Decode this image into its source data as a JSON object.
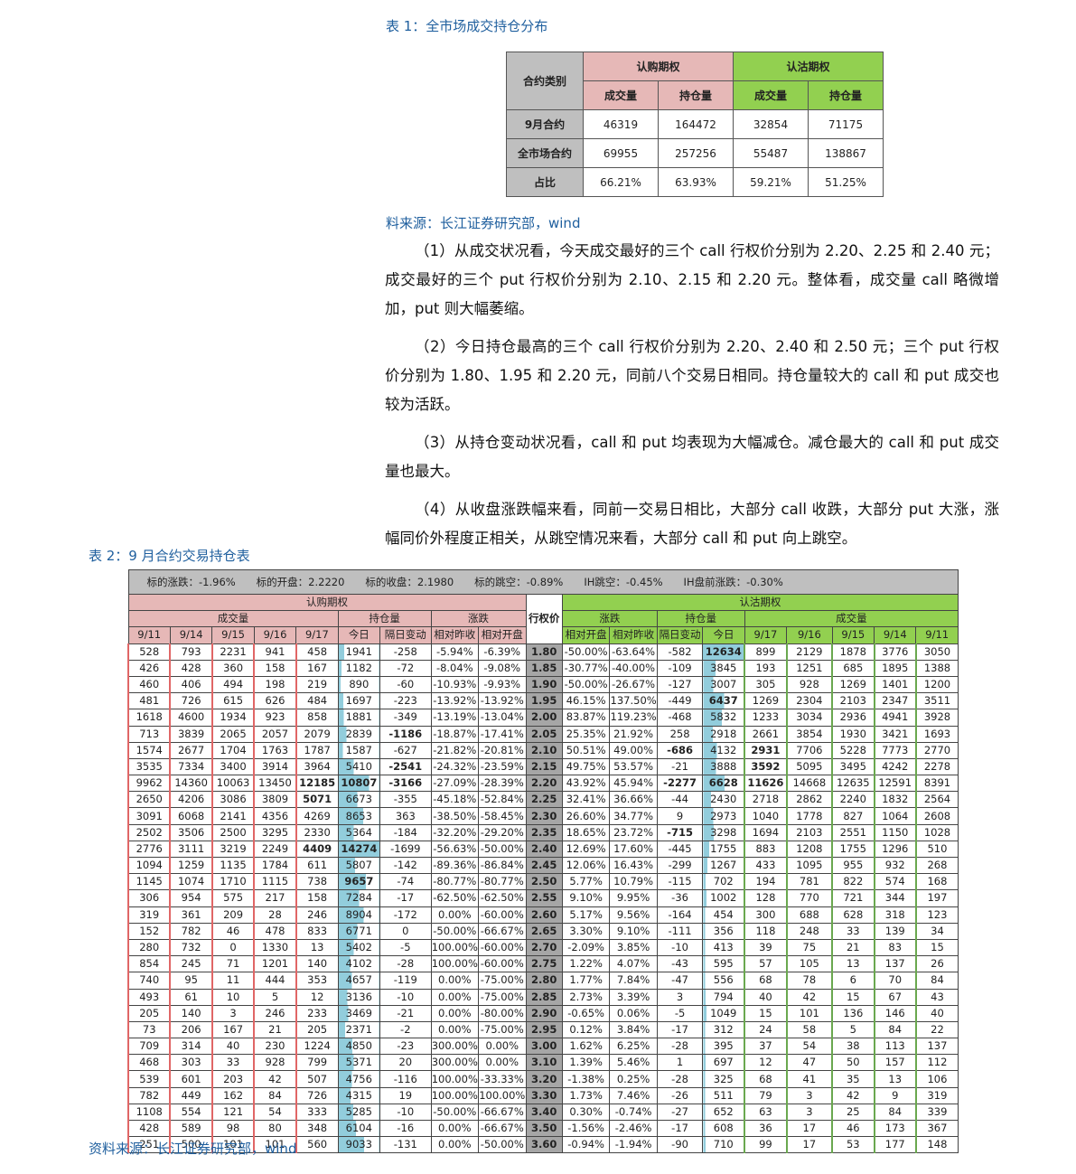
{
  "table1": {
    "caption": "表 1：全市场成交持仓分布",
    "corner": "合约类别",
    "call_header": "认购期权",
    "put_header": "认沽期权",
    "sub": [
      "成交量",
      "持仓量",
      "成交量",
      "持仓量"
    ],
    "rows": [
      {
        "label": "9月合约",
        "values": [
          "46319",
          "164472",
          "32854",
          "71175"
        ]
      },
      {
        "label": "全市场合约",
        "values": [
          "69955",
          "257256",
          "55487",
          "138867"
        ]
      },
      {
        "label": "占比",
        "values": [
          "66.21%",
          "63.93%",
          "59.21%",
          "51.25%"
        ]
      }
    ],
    "source": "料来源：长江证券研究部，wind"
  },
  "paragraphs": [
    "（1）从成交状况看，今天成交最好的三个 call 行权价分别为 2.20、2.25 和 2.40 元；成交最好的三个 put 行权价分别为 2.10、2.15 和 2.20 元。整体看，成交量 call 略微增加，put 则大幅萎缩。",
    "（2）今日持仓最高的三个 call 行权价分别为 2.20、2.40 和 2.50 元；三个 put 行权价分别为 1.80、1.95 和 2.20 元，同前八个交易日相同。持仓量较大的 call 和 put 成交也较为活跃。",
    "（3）从持仓变动状况看，call 和 put 均表现为大幅减仓。减仓最大的 call 和 put 成交量也最大。",
    "（4）从收盘涨跌幅来看，同前一交易日相比，大部分 call 收跌，大部分 put 大涨，涨幅同价外程度正相关，从跳空情况来看，大部分 call 和 put 向上跳空。"
  ],
  "table2": {
    "caption": "表 2：9 月合约交易持仓表",
    "summary": "标的涨跌：-1.96%　　标的开盘：2.2220　　标的收盘：2.1980　　标的跳空：-0.89%　　IH跳空：-0.45%　　IH盘前涨跌：-0.30%",
    "call_header": "认购期权",
    "put_header": "认沽期权",
    "strike_header": "行权价",
    "call_groups": [
      "成交量",
      "持仓量",
      "涨跌"
    ],
    "put_groups": [
      "涨跌",
      "持仓量",
      "成交量"
    ],
    "call_cols": [
      "9/11",
      "9/14",
      "9/15",
      "9/16",
      "9/17",
      "今日",
      "隔日变动",
      "相对昨收",
      "相对开盘"
    ],
    "put_cols": [
      "相对开盘",
      "相对昨收",
      "隔日变动",
      "今日",
      "9/17",
      "9/16",
      "9/15",
      "9/14",
      "9/11"
    ],
    "rows": [
      [
        "528",
        "793",
        "2231",
        "941",
        "458",
        "1941",
        "-258",
        "-5.94%",
        "-6.39%",
        "1.80",
        "-50.00%",
        "-63.64%",
        "-582",
        "12634",
        "899",
        "2129",
        "1878",
        "3776",
        "3050"
      ],
      [
        "426",
        "428",
        "360",
        "158",
        "167",
        "1182",
        "-72",
        "-8.04%",
        "-9.08%",
        "1.85",
        "-30.77%",
        "-40.00%",
        "-109",
        "3845",
        "193",
        "1251",
        "685",
        "1895",
        "1388"
      ],
      [
        "460",
        "406",
        "494",
        "198",
        "219",
        "890",
        "-60",
        "-10.93%",
        "-9.93%",
        "1.90",
        "-50.00%",
        "-26.67%",
        "-127",
        "3007",
        "305",
        "928",
        "1269",
        "1401",
        "1200"
      ],
      [
        "481",
        "726",
        "615",
        "626",
        "484",
        "1697",
        "-223",
        "-13.92%",
        "-13.92%",
        "1.95",
        "46.15%",
        "137.50%",
        "-449",
        "6437",
        "1269",
        "2304",
        "2103",
        "2347",
        "3511"
      ],
      [
        "1618",
        "4600",
        "1934",
        "923",
        "858",
        "1881",
        "-349",
        "-13.19%",
        "-13.04%",
        "2.00",
        "83.87%",
        "119.23%",
        "-468",
        "5832",
        "1233",
        "3034",
        "2936",
        "4941",
        "3928"
      ],
      [
        "713",
        "3839",
        "2065",
        "2057",
        "2079",
        "2839",
        "-1186",
        "-18.87%",
        "-17.41%",
        "2.05",
        "25.35%",
        "21.92%",
        "258",
        "2918",
        "2661",
        "3854",
        "1930",
        "3421",
        "1693"
      ],
      [
        "1574",
        "2677",
        "1704",
        "1763",
        "1787",
        "1587",
        "-627",
        "-21.82%",
        "-20.81%",
        "2.10",
        "50.51%",
        "49.00%",
        "-686",
        "4132",
        "2931",
        "7706",
        "5228",
        "7773",
        "2770"
      ],
      [
        "3535",
        "7334",
        "3400",
        "3914",
        "3964",
        "5410",
        "-2541",
        "-24.32%",
        "-23.59%",
        "2.15",
        "49.75%",
        "53.57%",
        "-21",
        "3888",
        "3592",
        "5095",
        "3495",
        "4242",
        "2278"
      ],
      [
        "9962",
        "14360",
        "10063",
        "13450",
        "12185",
        "10807",
        "-3166",
        "-27.09%",
        "-28.39%",
        "2.20",
        "43.92%",
        "45.94%",
        "-2277",
        "6628",
        "11626",
        "14668",
        "12635",
        "12591",
        "8391"
      ],
      [
        "2650",
        "4206",
        "3086",
        "3809",
        "5071",
        "6673",
        "-355",
        "-45.18%",
        "-52.84%",
        "2.25",
        "32.41%",
        "36.66%",
        "-44",
        "2430",
        "2718",
        "2862",
        "2240",
        "1832",
        "2564"
      ],
      [
        "3091",
        "6068",
        "2141",
        "4356",
        "4269",
        "8653",
        "363",
        "-38.50%",
        "-58.45%",
        "2.30",
        "26.60%",
        "34.77%",
        "9",
        "2973",
        "1040",
        "1778",
        "827",
        "1064",
        "2608"
      ],
      [
        "2502",
        "3506",
        "2500",
        "3295",
        "2330",
        "5364",
        "-184",
        "-32.20%",
        "-29.20%",
        "2.35",
        "18.65%",
        "23.72%",
        "-715",
        "3298",
        "1694",
        "2103",
        "2551",
        "1150",
        "1028"
      ],
      [
        "2776",
        "3111",
        "3219",
        "2249",
        "4409",
        "14274",
        "-1699",
        "-56.63%",
        "-50.00%",
        "2.40",
        "12.69%",
        "17.60%",
        "-445",
        "1755",
        "883",
        "1208",
        "1755",
        "1296",
        "510"
      ],
      [
        "1094",
        "1259",
        "1135",
        "1784",
        "611",
        "5807",
        "-142",
        "-89.36%",
        "-86.84%",
        "2.45",
        "12.06%",
        "16.43%",
        "-299",
        "1267",
        "433",
        "1095",
        "955",
        "932",
        "268"
      ],
      [
        "1145",
        "1074",
        "1710",
        "1115",
        "738",
        "9657",
        "-74",
        "-80.77%",
        "-80.77%",
        "2.50",
        "5.77%",
        "10.79%",
        "-115",
        "702",
        "194",
        "781",
        "822",
        "574",
        "168"
      ],
      [
        "306",
        "954",
        "575",
        "217",
        "158",
        "7284",
        "-17",
        "-62.50%",
        "-62.50%",
        "2.55",
        "9.10%",
        "9.95%",
        "-36",
        "1002",
        "128",
        "770",
        "721",
        "344",
        "197"
      ],
      [
        "319",
        "361",
        "209",
        "28",
        "246",
        "8904",
        "-172",
        "0.00%",
        "-60.00%",
        "2.60",
        "5.17%",
        "9.56%",
        "-164",
        "454",
        "300",
        "688",
        "628",
        "318",
        "123"
      ],
      [
        "152",
        "782",
        "46",
        "478",
        "833",
        "6771",
        "0",
        "-50.00%",
        "-66.67%",
        "2.65",
        "3.30%",
        "9.10%",
        "-111",
        "356",
        "118",
        "248",
        "33",
        "139",
        "34"
      ],
      [
        "280",
        "732",
        "0",
        "1330",
        "13",
        "5402",
        "-5",
        "100.00%",
        "-60.00%",
        "2.70",
        "-2.09%",
        "3.85%",
        "-10",
        "413",
        "39",
        "75",
        "21",
        "83",
        "15"
      ],
      [
        "854",
        "245",
        "71",
        "1201",
        "140",
        "4102",
        "-28",
        "100.00%",
        "-60.00%",
        "2.75",
        "1.22%",
        "4.07%",
        "-43",
        "595",
        "57",
        "105",
        "13",
        "137",
        "26"
      ],
      [
        "740",
        "95",
        "11",
        "444",
        "353",
        "4657",
        "-119",
        "0.00%",
        "-75.00%",
        "2.80",
        "1.77%",
        "7.84%",
        "-47",
        "556",
        "68",
        "78",
        "6",
        "70",
        "84"
      ],
      [
        "493",
        "61",
        "10",
        "5",
        "12",
        "3136",
        "-10",
        "0.00%",
        "-75.00%",
        "2.85",
        "2.73%",
        "3.39%",
        "3",
        "794",
        "40",
        "42",
        "15",
        "67",
        "43"
      ],
      [
        "205",
        "140",
        "3",
        "246",
        "233",
        "3469",
        "-21",
        "0.00%",
        "-80.00%",
        "2.90",
        "-0.65%",
        "0.06%",
        "-5",
        "1049",
        "15",
        "101",
        "136",
        "146",
        "40"
      ],
      [
        "73",
        "206",
        "167",
        "21",
        "205",
        "2371",
        "-2",
        "0.00%",
        "-75.00%",
        "2.95",
        "0.12%",
        "3.84%",
        "-17",
        "312",
        "24",
        "58",
        "5",
        "84",
        "22"
      ],
      [
        "709",
        "314",
        "40",
        "230",
        "1224",
        "4850",
        "-23",
        "300.00%",
        "0.00%",
        "3.00",
        "1.62%",
        "6.25%",
        "-28",
        "395",
        "37",
        "54",
        "38",
        "113",
        "137"
      ],
      [
        "468",
        "303",
        "33",
        "928",
        "799",
        "5371",
        "20",
        "300.00%",
        "0.00%",
        "3.10",
        "1.39%",
        "5.46%",
        "1",
        "697",
        "12",
        "47",
        "50",
        "157",
        "112"
      ],
      [
        "539",
        "601",
        "203",
        "42",
        "507",
        "4756",
        "-116",
        "100.00%",
        "-33.33%",
        "3.20",
        "-1.38%",
        "0.25%",
        "-28",
        "325",
        "68",
        "41",
        "35",
        "13",
        "106"
      ],
      [
        "782",
        "449",
        "162",
        "84",
        "726",
        "4315",
        "19",
        "100.00%",
        "100.00%",
        "3.30",
        "1.73%",
        "7.46%",
        "-26",
        "511",
        "79",
        "3",
        "42",
        "9",
        "319"
      ],
      [
        "1108",
        "554",
        "121",
        "54",
        "333",
        "5285",
        "-10",
        "-50.00%",
        "-66.67%",
        "3.40",
        "0.30%",
        "-0.74%",
        "-27",
        "652",
        "63",
        "3",
        "25",
        "84",
        "339"
      ],
      [
        "428",
        "589",
        "98",
        "80",
        "348",
        "6104",
        "-16",
        "0.00%",
        "-66.67%",
        "3.50",
        "-1.56%",
        "-2.46%",
        "-17",
        "608",
        "36",
        "17",
        "46",
        "173",
        "367"
      ],
      [
        "251",
        "500",
        "101",
        "101",
        "560",
        "9033",
        "-131",
        "0.00%",
        "-50.00%",
        "3.60",
        "-0.94%",
        "-1.94%",
        "-90",
        "710",
        "99",
        "17",
        "53",
        "177",
        "148"
      ]
    ],
    "bold_cells": [
      [
        0,
        13
      ],
      [
        3,
        13
      ],
      [
        5,
        6
      ],
      [
        6,
        12
      ],
      [
        6,
        14
      ],
      [
        7,
        6
      ],
      [
        7,
        14
      ],
      [
        8,
        4
      ],
      [
        8,
        5
      ],
      [
        8,
        6
      ],
      [
        8,
        12
      ],
      [
        8,
        13
      ],
      [
        8,
        14
      ],
      [
        9,
        4
      ],
      [
        11,
        12
      ],
      [
        12,
        4
      ],
      [
        12,
        5
      ],
      [
        14,
        5
      ]
    ],
    "source": "资料来源：长江证券研究部，wind"
  },
  "colors": {
    "caption": "#1f5f9e",
    "call": "#e6b8b7",
    "put": "#92d050",
    "strike": "#a6a6a6",
    "header": "#bfbfbf",
    "bar": "#92cddc"
  }
}
